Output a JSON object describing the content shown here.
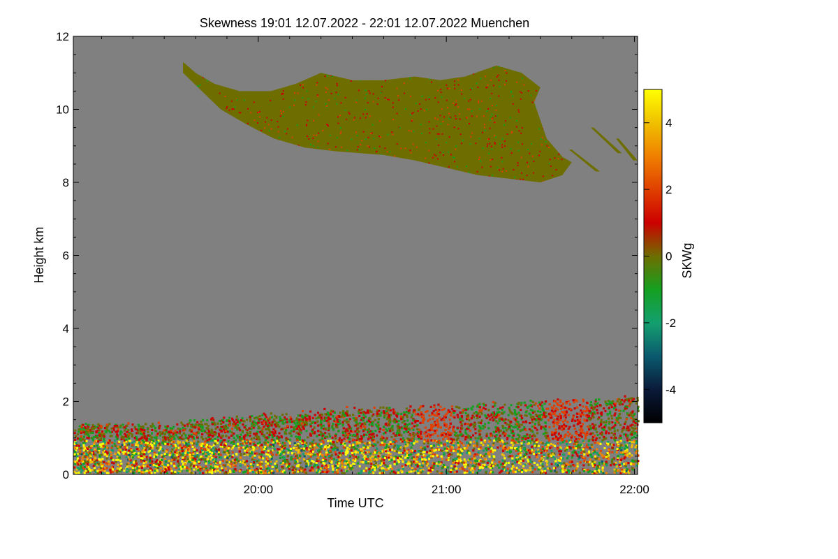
{
  "chart_data": {
    "type": "heatmap",
    "title": "Skewness   19:01 12.07.2022 - 22:01 12.07.2022 Muenchen",
    "xlabel": "Time UTC",
    "ylabel": "Height km",
    "x_range_minutes": [
      1141,
      1321
    ],
    "x_ticks": [
      {
        "minute": 1200,
        "label": "20:00"
      },
      {
        "minute": 1260,
        "label": "21:00"
      },
      {
        "minute": 1320,
        "label": "22:00"
      }
    ],
    "ylim": [
      0,
      12
    ],
    "y_ticks": [
      0,
      2,
      4,
      6,
      8,
      10,
      12
    ],
    "background_color": "#808080",
    "colorbar": {
      "label": "SKWg",
      "range": [
        -5,
        5
      ],
      "ticks": [
        -4,
        -2,
        0,
        2,
        4
      ],
      "stops": [
        {
          "v": -5,
          "color": "#000000"
        },
        {
          "v": -4,
          "color": "#0a1a3a"
        },
        {
          "v": -3,
          "color": "#0a5a6e"
        },
        {
          "v": -2,
          "color": "#14a06e"
        },
        {
          "v": -1,
          "color": "#14a020"
        },
        {
          "v": 0,
          "color": "#6e6e00"
        },
        {
          "v": 1,
          "color": "#cc0000"
        },
        {
          "v": 2,
          "color": "#e04000"
        },
        {
          "v": 3,
          "color": "#f08000"
        },
        {
          "v": 4,
          "color": "#f0c000"
        },
        {
          "v": 5,
          "color": "#ffff00"
        }
      ]
    },
    "features": [
      {
        "name": "cirrus-cloud",
        "x_minutes": [
          1175,
          1290
        ],
        "height_km": [
          8.1,
          11.4
        ],
        "dominant_value": 0
      },
      {
        "name": "boundary-layer",
        "x_minutes": [
          1141,
          1321
        ],
        "height_km": [
          0,
          2.0
        ],
        "dominant_value": 1
      }
    ]
  }
}
